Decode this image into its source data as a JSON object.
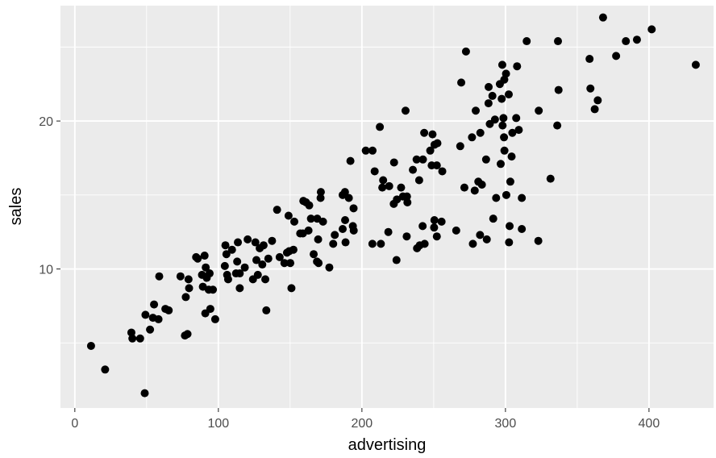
{
  "chart_data": {
    "type": "scatter",
    "xlabel": "advertising",
    "ylabel": "sales",
    "xlim": [
      -10,
      445
    ],
    "ylim": [
      0.6,
      27.8
    ],
    "x_ticks": [
      0,
      100,
      200,
      300,
      400
    ],
    "x_tick_labels": [
      "0",
      "100",
      "200",
      "300",
      "400"
    ],
    "y_ticks": [
      10,
      20
    ],
    "y_tick_labels": [
      "10",
      "20"
    ],
    "grid": true,
    "panel_background": "#ebebeb",
    "grid_color": "#ffffff",
    "point_color": "#000000",
    "points": [
      [
        11.3,
        4.8
      ],
      [
        21.1,
        3.2
      ],
      [
        39.4,
        5.7
      ],
      [
        40.1,
        5.3
      ],
      [
        45.5,
        5.3
      ],
      [
        48.7,
        1.6
      ],
      [
        49.2,
        6.9
      ],
      [
        52.4,
        5.9
      ],
      [
        54.4,
        6.7
      ],
      [
        55.2,
        7.6
      ],
      [
        58.3,
        6.6
      ],
      [
        58.8,
        9.5
      ],
      [
        63.1,
        7.3
      ],
      [
        65.4,
        7.2
      ],
      [
        73.6,
        9.5
      ],
      [
        76.7,
        5.5
      ],
      [
        77.3,
        8.1
      ],
      [
        78.5,
        5.6
      ],
      [
        79.2,
        9.3
      ],
      [
        79.6,
        8.7
      ],
      [
        84.5,
        10.8
      ],
      [
        85.6,
        10.7
      ],
      [
        88.6,
        9.6
      ],
      [
        89.2,
        8.8
      ],
      [
        90.4,
        10.9
      ],
      [
        90.9,
        7.0
      ],
      [
        91.2,
        10.1
      ],
      [
        91.9,
        9.4
      ],
      [
        93.3,
        8.6
      ],
      [
        93.9,
        9.7
      ],
      [
        94.4,
        7.3
      ],
      [
        96.2,
        8.6
      ],
      [
        97.8,
        6.6
      ],
      [
        104.5,
        10.2
      ],
      [
        104.9,
        11.6
      ],
      [
        105.6,
        11.0
      ],
      [
        106.1,
        9.6
      ],
      [
        106.8,
        9.3
      ],
      [
        109.5,
        11.3
      ],
      [
        112.3,
        9.7
      ],
      [
        113.1,
        10.5
      ],
      [
        113.6,
        11.8
      ],
      [
        114.9,
        9.7
      ],
      [
        114.9,
        8.7
      ],
      [
        118.4,
        10.1
      ],
      [
        120.4,
        12.0
      ],
      [
        124.1,
        9.3
      ],
      [
        125.8,
        11.8
      ],
      [
        126.5,
        10.6
      ],
      [
        127.5,
        9.6
      ],
      [
        128.8,
        11.4
      ],
      [
        130.6,
        10.3
      ],
      [
        131.5,
        11.6
      ],
      [
        132.7,
        9.3
      ],
      [
        133.4,
        7.2
      ],
      [
        134.8,
        10.7
      ],
      [
        137.4,
        11.9
      ],
      [
        140.9,
        14.0
      ],
      [
        142.7,
        10.8
      ],
      [
        146.0,
        10.4
      ],
      [
        147.8,
        11.1
      ],
      [
        148.9,
        13.6
      ],
      [
        149.3,
        11.2
      ],
      [
        150.1,
        10.4
      ],
      [
        150.9,
        8.7
      ],
      [
        152.3,
        11.3
      ],
      [
        152.9,
        13.2
      ],
      [
        157.0,
        12.4
      ],
      [
        158.9,
        12.4
      ],
      [
        159.2,
        14.6
      ],
      [
        161.1,
        14.5
      ],
      [
        162.8,
        12.6
      ],
      [
        163.3,
        14.3
      ],
      [
        164.5,
        13.4
      ],
      [
        166.4,
        11.0
      ],
      [
        168.7,
        10.5
      ],
      [
        168.9,
        13.4
      ],
      [
        169.5,
        12.0
      ],
      [
        169.8,
        10.4
      ],
      [
        171.2,
        14.8
      ],
      [
        171.4,
        15.2
      ],
      [
        172.9,
        13.2
      ],
      [
        177.3,
        10.1
      ],
      [
        180.0,
        11.7
      ],
      [
        181.1,
        12.3
      ],
      [
        186.6,
        15.0
      ],
      [
        186.6,
        12.7
      ],
      [
        188.2,
        15.2
      ],
      [
        188.3,
        13.3
      ],
      [
        188.6,
        11.8
      ],
      [
        190.9,
        14.8
      ],
      [
        192.0,
        17.3
      ],
      [
        193.7,
        12.9
      ],
      [
        194.2,
        14.1
      ],
      [
        194.3,
        12.6
      ],
      [
        202.7,
        18.0
      ],
      [
        207.3,
        11.7
      ],
      [
        207.4,
        18.0
      ],
      [
        208.9,
        16.6
      ],
      [
        212.5,
        19.6
      ],
      [
        213.2,
        11.7
      ],
      [
        214.2,
        15.5
      ],
      [
        214.8,
        16.0
      ],
      [
        218.4,
        12.5
      ],
      [
        219.0,
        15.6
      ],
      [
        222.2,
        14.4
      ],
      [
        222.4,
        17.2
      ],
      [
        224.1,
        10.6
      ],
      [
        224.4,
        14.7
      ],
      [
        227.3,
        15.5
      ],
      [
        228.6,
        14.9
      ],
      [
        230.4,
        20.7
      ],
      [
        231.2,
        12.2
      ],
      [
        231.4,
        14.9
      ],
      [
        231.7,
        14.5
      ],
      [
        235.5,
        16.7
      ],
      [
        238.1,
        17.4
      ],
      [
        238.4,
        11.4
      ],
      [
        239.9,
        16.0
      ],
      [
        240.3,
        11.6
      ],
      [
        242.3,
        12.9
      ],
      [
        242.5,
        17.4
      ],
      [
        243.4,
        19.2
      ],
      [
        243.7,
        11.7
      ],
      [
        247.6,
        18.0
      ],
      [
        248.6,
        17.0
      ],
      [
        249.2,
        19.1
      ],
      [
        250.3,
        12.8
      ],
      [
        250.5,
        13.3
      ],
      [
        250.6,
        18.4
      ],
      [
        252.2,
        17.0
      ],
      [
        252.2,
        12.2
      ],
      [
        252.6,
        18.5
      ],
      [
        255.5,
        13.2
      ],
      [
        256.0,
        16.6
      ],
      [
        265.7,
        12.6
      ],
      [
        268.5,
        18.3
      ],
      [
        269.2,
        22.6
      ],
      [
        271.4,
        15.5
      ],
      [
        272.5,
        24.7
      ],
      [
        276.7,
        18.9
      ],
      [
        277.3,
        11.7
      ],
      [
        278.6,
        15.3
      ],
      [
        279.3,
        20.7
      ],
      [
        281.1,
        15.9
      ],
      [
        282.3,
        12.3
      ],
      [
        282.5,
        19.2
      ],
      [
        283.6,
        15.7
      ],
      [
        286.5,
        17.4
      ],
      [
        287.0,
        12.0
      ],
      [
        288.2,
        21.2
      ],
      [
        288.3,
        22.3
      ],
      [
        289.1,
        19.8
      ],
      [
        290.9,
        21.7
      ],
      [
        291.5,
        13.4
      ],
      [
        292.7,
        20.1
      ],
      [
        293.5,
        14.8
      ],
      [
        296.1,
        22.5
      ],
      [
        296.7,
        17.1
      ],
      [
        297.4,
        21.5
      ],
      [
        297.8,
        23.8
      ],
      [
        298.0,
        19.7
      ],
      [
        298.6,
        20.2
      ],
      [
        299.0,
        18.9
      ],
      [
        299.2,
        22.8
      ],
      [
        299.3,
        18.0
      ],
      [
        300.4,
        23.2
      ],
      [
        300.6,
        15.0
      ],
      [
        302.3,
        21.8
      ],
      [
        302.5,
        11.8
      ],
      [
        302.9,
        12.9
      ],
      [
        303.4,
        15.9
      ],
      [
        304.3,
        17.6
      ],
      [
        304.8,
        19.2
      ],
      [
        307.5,
        20.2
      ],
      [
        308.1,
        23.7
      ],
      [
        309.3,
        19.4
      ],
      [
        311.4,
        12.7
      ],
      [
        311.4,
        14.8
      ],
      [
        314.8,
        25.4
      ],
      [
        322.9,
        11.9
      ],
      [
        323.2,
        20.7
      ],
      [
        331.4,
        16.1
      ],
      [
        336.1,
        19.7
      ],
      [
        336.6,
        25.4
      ],
      [
        337.0,
        22.1
      ],
      [
        358.6,
        24.2
      ],
      [
        359.2,
        22.2
      ],
      [
        362.2,
        20.8
      ],
      [
        364.3,
        21.4
      ],
      [
        368.0,
        27.0
      ],
      [
        377.1,
        24.4
      ],
      [
        383.9,
        25.4
      ],
      [
        391.6,
        25.5
      ],
      [
        401.9,
        26.2
      ],
      [
        432.6,
        23.8
      ]
    ]
  }
}
